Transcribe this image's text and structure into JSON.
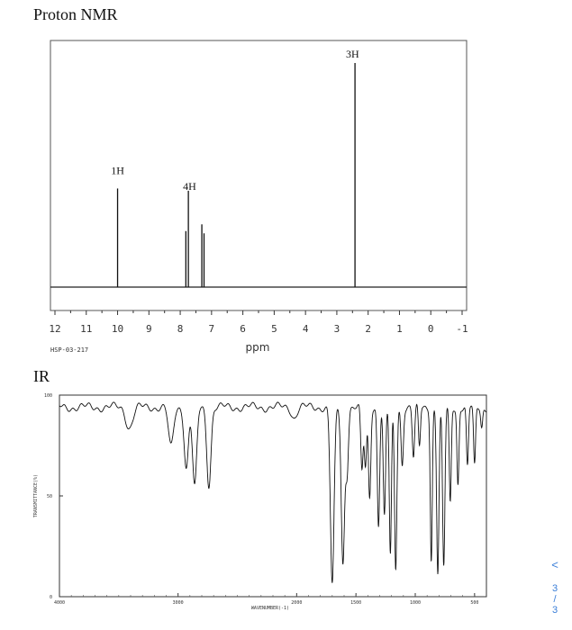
{
  "page": {
    "nmr_heading": "Proton NMR",
    "ir_heading": "IR",
    "pager": {
      "chevron": "<",
      "current": "3",
      "separator": "/",
      "total": "3"
    }
  },
  "chart_data": [
    {
      "type": "line",
      "name": "proton-nmr",
      "title": "Proton NMR",
      "xlabel": "ppm",
      "xlim": [
        12,
        -1
      ],
      "x_ticks": [
        "12",
        "11",
        "10",
        "9",
        "8",
        "7",
        "6",
        "5",
        "4",
        "3",
        "2",
        "1",
        "0",
        "-1"
      ],
      "footnote": "HSP-03-217",
      "peaks": [
        {
          "ppm": 10.0,
          "height": 0.44,
          "width": 0.06
        },
        {
          "ppm": 7.82,
          "height": 0.25,
          "width": 0.05
        },
        {
          "ppm": 7.74,
          "height": 0.43,
          "width": 0.05
        },
        {
          "ppm": 7.31,
          "height": 0.28,
          "width": 0.05
        },
        {
          "ppm": 7.24,
          "height": 0.24,
          "width": 0.05
        },
        {
          "ppm": 2.42,
          "height": 1.0,
          "width": 0.05
        }
      ],
      "annotations": [
        {
          "text": "1H",
          "ppm": 10.0,
          "height": 0.52
        },
        {
          "text": "4H",
          "ppm": 7.7,
          "height": 0.45
        },
        {
          "text": "3H",
          "ppm": 2.5,
          "height": 1.04
        }
      ]
    },
    {
      "type": "line",
      "name": "ir",
      "title": "IR",
      "xlabel": "WAVENUMBER(-1)",
      "ylabel": "TRANSMITTANCE(%)",
      "xlim": [
        4000,
        400
      ],
      "ylim": [
        0,
        100
      ],
      "x_ticks": [
        "4000",
        "3000",
        "2000",
        "1500",
        "1000",
        "500"
      ],
      "y_ticks": [
        "100",
        "50",
        "0"
      ],
      "baseline": 94,
      "bands": [
        {
          "wn": 3410,
          "depth": 10,
          "width": 40
        },
        {
          "wn": 3060,
          "depth": 20,
          "width": 30
        },
        {
          "wn": 2930,
          "depth": 30,
          "width": 25
        },
        {
          "wn": 2860,
          "depth": 40,
          "width": 25
        },
        {
          "wn": 2740,
          "depth": 38,
          "width": 25
        },
        {
          "wn": 2020,
          "depth": 5,
          "width": 30
        },
        {
          "wn": 1700,
          "depth": 88,
          "width": 22
        },
        {
          "wn": 1610,
          "depth": 78,
          "width": 20
        },
        {
          "wn": 1575,
          "depth": 30,
          "width": 16
        },
        {
          "wn": 1450,
          "depth": 32,
          "width": 14
        },
        {
          "wn": 1420,
          "depth": 30,
          "width": 14
        },
        {
          "wn": 1385,
          "depth": 45,
          "width": 14
        },
        {
          "wn": 1310,
          "depth": 58,
          "width": 14
        },
        {
          "wn": 1260,
          "depth": 55,
          "width": 14
        },
        {
          "wn": 1210,
          "depth": 74,
          "width": 13
        },
        {
          "wn": 1165,
          "depth": 80,
          "width": 14
        },
        {
          "wn": 1110,
          "depth": 28,
          "width": 14
        },
        {
          "wn": 1015,
          "depth": 25,
          "width": 14
        },
        {
          "wn": 965,
          "depth": 20,
          "width": 12
        },
        {
          "wn": 865,
          "depth": 75,
          "width": 12
        },
        {
          "wn": 810,
          "depth": 82,
          "width": 14
        },
        {
          "wn": 760,
          "depth": 80,
          "width": 14
        },
        {
          "wn": 705,
          "depth": 48,
          "width": 12
        },
        {
          "wn": 640,
          "depth": 38,
          "width": 12
        },
        {
          "wn": 560,
          "depth": 30,
          "width": 12
        },
        {
          "wn": 500,
          "depth": 30,
          "width": 12
        },
        {
          "wn": 440,
          "depth": 10,
          "width": 12
        }
      ]
    }
  ]
}
